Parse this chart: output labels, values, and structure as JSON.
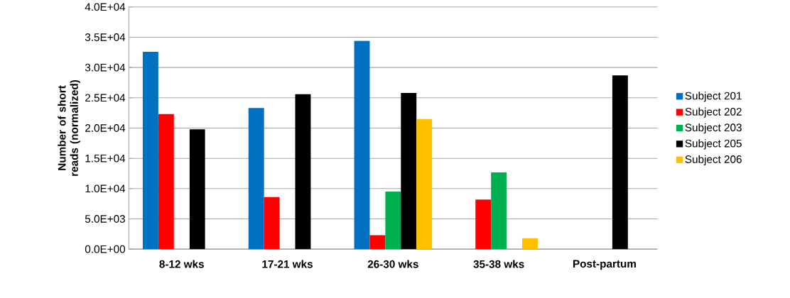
{
  "chart_data": {
    "type": "bar",
    "ylabel": "Number of short reads (normalized)",
    "categories": [
      "8-12 wks",
      "17-21 wks",
      "26-30 wks",
      "35-38 wks",
      "Post-partum"
    ],
    "series": [
      {
        "name": "Subject 201",
        "color": "#0070c0",
        "values": [
          32600,
          23300,
          34400,
          null,
          null
        ]
      },
      {
        "name": "Subject 202",
        "color": "#ff0000",
        "values": [
          22300,
          8600,
          2300,
          8200,
          null
        ]
      },
      {
        "name": "Subject 203",
        "color": "#00b050",
        "values": [
          null,
          null,
          9500,
          12700,
          null
        ]
      },
      {
        "name": "Subject 205",
        "color": "#000000",
        "values": [
          19800,
          25600,
          25800,
          null,
          28700
        ]
      },
      {
        "name": "Subject 206",
        "color": "#ffc000",
        "values": [
          null,
          null,
          21500,
          1800,
          null
        ]
      }
    ],
    "ylim": [
      0,
      40000
    ],
    "yticks": [
      {
        "value": 0,
        "label": "0.0E+00"
      },
      {
        "value": 5000,
        "label": "5.0E+03"
      },
      {
        "value": 10000,
        "label": "1.0E+04"
      },
      {
        "value": 15000,
        "label": "1.5E+04"
      },
      {
        "value": 20000,
        "label": "2.0E+04"
      },
      {
        "value": 25000,
        "label": "2.5E+04"
      },
      {
        "value": 30000,
        "label": "3.0E+04"
      },
      {
        "value": 35000,
        "label": "3.5E+04"
      },
      {
        "value": 40000,
        "label": "4.0E+04"
      }
    ],
    "grid": "y",
    "legend": "right"
  }
}
